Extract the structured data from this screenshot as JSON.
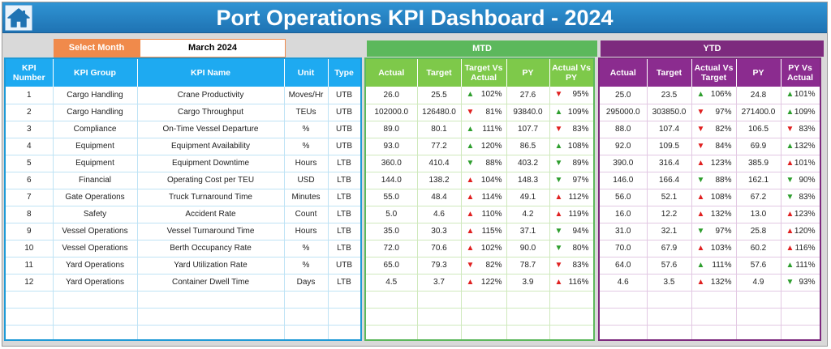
{
  "title": "Port Operations KPI Dashboard - 2024",
  "select_month": {
    "label": "Select Month",
    "value": "March 2024"
  },
  "banners": {
    "mtd": "MTD",
    "ytd": "YTD"
  },
  "headers": {
    "left": [
      "KPI Number",
      "KPI Group",
      "KPI Name",
      "Unit",
      "Type"
    ],
    "mtd": [
      "Actual",
      "Target",
      "Target Vs Actual",
      "PY",
      "Actual Vs PY"
    ],
    "ytd": [
      "Actual",
      "Target",
      "Actual Vs Target",
      "PY",
      "PY Vs Actual"
    ]
  },
  "colors": {
    "up_arrow": "#2e9e2e",
    "down_arrow": "#e02020",
    "title_bar": "#1f73b3",
    "mtd": "#5cb85c",
    "ytd": "#7d2a7e",
    "kpi_header": "#1eaaf1",
    "select_label": "#f08a4b"
  },
  "rows": [
    {
      "num": "1",
      "group": "Cargo Handling",
      "name": "Crane Productivity",
      "unit": "Moves/Hr",
      "type": "UTB",
      "mtd": {
        "actual": "26.0",
        "target": "25.5",
        "tva": "102%",
        "tva_arrow": "up-green",
        "py": "27.6",
        "avp": "95%",
        "avp_arrow": "down-red"
      },
      "ytd": {
        "actual": "25.0",
        "target": "23.5",
        "avt": "106%",
        "avt_arrow": "up-green",
        "py": "24.8",
        "pva": "101%",
        "pva_arrow": "up-green"
      }
    },
    {
      "num": "2",
      "group": "Cargo Handling",
      "name": "Cargo Throughput",
      "unit": "TEUs",
      "type": "UTB",
      "mtd": {
        "actual": "102000.0",
        "target": "126480.0",
        "tva": "81%",
        "tva_arrow": "down-red",
        "py": "93840.0",
        "avp": "109%",
        "avp_arrow": "up-green"
      },
      "ytd": {
        "actual": "295000.0",
        "target": "303850.0",
        "avt": "97%",
        "avt_arrow": "down-red",
        "py": "271400.0",
        "pva": "109%",
        "pva_arrow": "up-green"
      }
    },
    {
      "num": "3",
      "group": "Compliance",
      "name": "On-Time Vessel Departure",
      "unit": "%",
      "type": "UTB",
      "mtd": {
        "actual": "89.0",
        "target": "80.1",
        "tva": "111%",
        "tva_arrow": "up-green",
        "py": "107.7",
        "avp": "83%",
        "avp_arrow": "down-red"
      },
      "ytd": {
        "actual": "88.0",
        "target": "107.4",
        "avt": "82%",
        "avt_arrow": "down-red",
        "py": "106.5",
        "pva": "83%",
        "pva_arrow": "down-red"
      }
    },
    {
      "num": "4",
      "group": "Equipment",
      "name": "Equipment Availability",
      "unit": "%",
      "type": "UTB",
      "mtd": {
        "actual": "93.0",
        "target": "77.2",
        "tva": "120%",
        "tva_arrow": "up-green",
        "py": "86.5",
        "avp": "108%",
        "avp_arrow": "up-green"
      },
      "ytd": {
        "actual": "92.0",
        "target": "109.5",
        "avt": "84%",
        "avt_arrow": "down-red",
        "py": "69.9",
        "pva": "132%",
        "pva_arrow": "up-green"
      }
    },
    {
      "num": "5",
      "group": "Equipment",
      "name": "Equipment Downtime",
      "unit": "Hours",
      "type": "LTB",
      "mtd": {
        "actual": "360.0",
        "target": "410.4",
        "tva": "88%",
        "tva_arrow": "down-green",
        "py": "403.2",
        "avp": "89%",
        "avp_arrow": "down-green"
      },
      "ytd": {
        "actual": "390.0",
        "target": "316.4",
        "avt": "123%",
        "avt_arrow": "up-red",
        "py": "385.9",
        "pva": "101%",
        "pva_arrow": "up-red"
      }
    },
    {
      "num": "6",
      "group": "Financial",
      "name": "Operating Cost per TEU",
      "unit": "USD",
      "type": "LTB",
      "mtd": {
        "actual": "144.0",
        "target": "138.2",
        "tva": "104%",
        "tva_arrow": "up-red",
        "py": "148.3",
        "avp": "97%",
        "avp_arrow": "down-green"
      },
      "ytd": {
        "actual": "146.0",
        "target": "166.4",
        "avt": "88%",
        "avt_arrow": "down-green",
        "py": "162.1",
        "pva": "90%",
        "pva_arrow": "down-green"
      }
    },
    {
      "num": "7",
      "group": "Gate Operations",
      "name": "Truck Turnaround Time",
      "unit": "Minutes",
      "type": "LTB",
      "mtd": {
        "actual": "55.0",
        "target": "48.4",
        "tva": "114%",
        "tva_arrow": "up-red",
        "py": "49.1",
        "avp": "112%",
        "avp_arrow": "up-red"
      },
      "ytd": {
        "actual": "56.0",
        "target": "52.1",
        "avt": "108%",
        "avt_arrow": "up-red",
        "py": "67.2",
        "pva": "83%",
        "pva_arrow": "down-green"
      }
    },
    {
      "num": "8",
      "group": "Safety",
      "name": "Accident Rate",
      "unit": "Count",
      "type": "LTB",
      "mtd": {
        "actual": "5.0",
        "target": "4.6",
        "tva": "110%",
        "tva_arrow": "up-red",
        "py": "4.2",
        "avp": "119%",
        "avp_arrow": "up-red"
      },
      "ytd": {
        "actual": "16.0",
        "target": "12.2",
        "avt": "132%",
        "avt_arrow": "up-red",
        "py": "13.0",
        "pva": "123%",
        "pva_arrow": "up-red"
      }
    },
    {
      "num": "9",
      "group": "Vessel Operations",
      "name": "Vessel Turnaround Time",
      "unit": "Hours",
      "type": "LTB",
      "mtd": {
        "actual": "35.0",
        "target": "30.3",
        "tva": "115%",
        "tva_arrow": "up-red",
        "py": "37.1",
        "avp": "94%",
        "avp_arrow": "down-green"
      },
      "ytd": {
        "actual": "31.0",
        "target": "32.1",
        "avt": "97%",
        "avt_arrow": "down-green",
        "py": "25.8",
        "pva": "120%",
        "pva_arrow": "up-red"
      }
    },
    {
      "num": "10",
      "group": "Vessel Operations",
      "name": "Berth Occupancy Rate",
      "unit": "%",
      "type": "LTB",
      "mtd": {
        "actual": "72.0",
        "target": "70.6",
        "tva": "102%",
        "tva_arrow": "up-red",
        "py": "90.0",
        "avp": "80%",
        "avp_arrow": "down-green"
      },
      "ytd": {
        "actual": "70.0",
        "target": "67.9",
        "avt": "103%",
        "avt_arrow": "up-red",
        "py": "60.2",
        "pva": "116%",
        "pva_arrow": "up-red"
      }
    },
    {
      "num": "11",
      "group": "Yard Operations",
      "name": "Yard Utilization Rate",
      "unit": "%",
      "type": "UTB",
      "mtd": {
        "actual": "65.0",
        "target": "79.3",
        "tva": "82%",
        "tva_arrow": "down-red",
        "py": "78.7",
        "avp": "83%",
        "avp_arrow": "down-red"
      },
      "ytd": {
        "actual": "64.0",
        "target": "57.6",
        "avt": "111%",
        "avt_arrow": "up-green",
        "py": "57.6",
        "pva": "111%",
        "pva_arrow": "up-green"
      }
    },
    {
      "num": "12",
      "group": "Yard Operations",
      "name": "Container Dwell Time",
      "unit": "Days",
      "type": "LTB",
      "mtd": {
        "actual": "4.5",
        "target": "3.7",
        "tva": "122%",
        "tva_arrow": "up-red",
        "py": "3.9",
        "avp": "116%",
        "avp_arrow": "up-red"
      },
      "ytd": {
        "actual": "4.6",
        "target": "3.5",
        "avt": "132%",
        "avt_arrow": "up-red",
        "py": "4.9",
        "pva": "93%",
        "pva_arrow": "down-green"
      }
    }
  ]
}
